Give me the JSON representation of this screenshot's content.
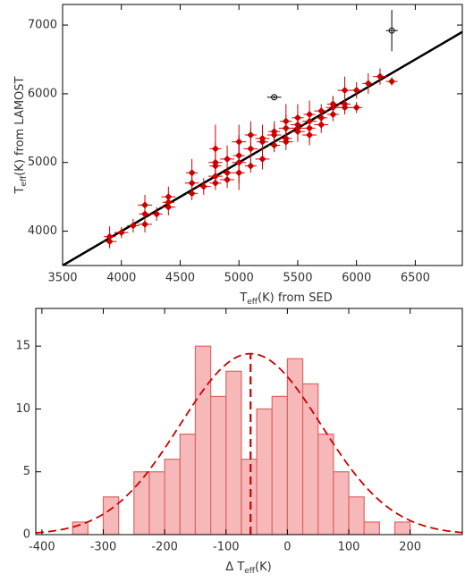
{
  "chart_data": [
    {
      "type": "scatter",
      "xlabel": [
        "T",
        "eff",
        "(K) from SED"
      ],
      "ylabel": [
        "T",
        "eff",
        "(K) from LAMOST"
      ],
      "xlim": [
        3500,
        6900
      ],
      "ylim": [
        3500,
        7300
      ],
      "xticks": [
        3500,
        4000,
        4500,
        5000,
        5500,
        6000,
        6500
      ],
      "yticks": [
        4000,
        5000,
        6000,
        7000
      ],
      "reference_line": {
        "x": [
          3500,
          6900
        ],
        "y": [
          3500,
          6900
        ],
        "color": "#000000"
      },
      "series": [
        {
          "color": "#cc0000",
          "marker": "filled",
          "x": [
            3900,
            3900,
            4000,
            4100,
            4200,
            4200,
            4200,
            4300,
            4400,
            4400,
            4400,
            4600,
            4600,
            4600,
            4700,
            4800,
            4800,
            4800,
            4800,
            4800,
            4900,
            4900,
            4900,
            5000,
            5000,
            5000,
            5000,
            5100,
            5100,
            5100,
            5200,
            5200,
            5200,
            5300,
            5300,
            5300,
            5400,
            5400,
            5400,
            5400,
            5500,
            5500,
            5500,
            5500,
            5600,
            5600,
            5600,
            5600,
            5700,
            5700,
            5700,
            5800,
            5800,
            5800,
            5900,
            5900,
            5900,
            6000,
            6000,
            6100,
            6200,
            6300
          ],
          "y": [
            3850,
            3920,
            3980,
            4080,
            4100,
            4250,
            4380,
            4250,
            4350,
            4420,
            4500,
            4550,
            4700,
            4850,
            4650,
            4700,
            4800,
            4950,
            5000,
            5200,
            4750,
            4850,
            5050,
            4850,
            5000,
            5100,
            5300,
            4950,
            5200,
            5400,
            5050,
            5300,
            5350,
            5250,
            5400,
            5450,
            5300,
            5350,
            5500,
            5600,
            5450,
            5500,
            5550,
            5650,
            5400,
            5500,
            5600,
            5700,
            5550,
            5650,
            5750,
            5700,
            5800,
            5850,
            5800,
            5850,
            6050,
            5800,
            6050,
            6150,
            6250,
            6180
          ],
          "xerr": [
            60,
            50,
            60,
            50,
            60,
            50,
            60,
            50,
            60,
            50,
            60,
            50,
            60,
            50,
            60,
            50,
            60,
            50,
            60,
            50,
            60,
            50,
            60,
            50,
            60,
            50,
            60,
            50,
            60,
            50,
            60,
            50,
            60,
            50,
            60,
            50,
            60,
            50,
            60,
            50,
            60,
            50,
            60,
            50,
            60,
            50,
            60,
            50,
            60,
            50,
            60,
            50,
            60,
            50,
            60,
            50,
            60,
            50,
            60,
            50,
            60,
            50
          ],
          "yerr": [
            100,
            150,
            80,
            100,
            120,
            200,
            150,
            100,
            120,
            100,
            150,
            100,
            150,
            200,
            120,
            100,
            150,
            250,
            300,
            350,
            120,
            100,
            200,
            150,
            400,
            150,
            250,
            100,
            300,
            200,
            150,
            150,
            200,
            100,
            150,
            150,
            120,
            100,
            200,
            250,
            150,
            100,
            120,
            200,
            150,
            200,
            150,
            200,
            120,
            150,
            100,
            100,
            150,
            120,
            100,
            150,
            200,
            80,
            120,
            150,
            120,
            60
          ]
        },
        {
          "color": "#000000",
          "marker": "open",
          "x": [
            5300,
            6300
          ],
          "y": [
            5950,
            6920
          ],
          "xerr": [
            60,
            50
          ],
          "yerr": [
            20,
            300
          ]
        }
      ]
    },
    {
      "type": "histogram",
      "xlabel": [
        "Δ T",
        "eff",
        "(K)"
      ],
      "xlim": [
        -410,
        285
      ],
      "ylim": [
        0,
        18
      ],
      "xticks": [
        -400,
        -300,
        -200,
        -100,
        0,
        100,
        200
      ],
      "yticks": [
        0,
        5,
        10,
        15
      ],
      "bins": [
        -350,
        -325,
        -300,
        -275,
        -250,
        -225,
        -200,
        -175,
        -150,
        -125,
        -100,
        -75,
        -50,
        -25,
        0,
        25,
        50,
        75,
        100,
        125,
        150,
        175,
        200
      ],
      "counts": [
        1,
        0,
        3,
        0,
        5,
        5,
        6,
        8,
        15,
        11,
        13,
        6,
        10,
        11,
        14,
        12,
        8,
        5,
        3,
        1,
        0,
        1
      ],
      "color": "#f6b8b8",
      "edgecolor": "#e06666",
      "fit": {
        "mean": -60,
        "sigma": 115,
        "peak": 14.4,
        "color": "#cc0000"
      }
    }
  ]
}
